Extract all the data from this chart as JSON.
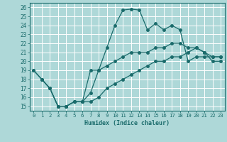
{
  "xlabel": "Humidex (Indice chaleur)",
  "bg_color": "#aed8d8",
  "grid_color": "#ffffff",
  "line_color": "#1a6b6b",
  "xlim": [
    -0.5,
    23.5
  ],
  "ylim": [
    14.5,
    26.5
  ],
  "xticks": [
    0,
    1,
    2,
    3,
    4,
    5,
    6,
    7,
    8,
    9,
    10,
    11,
    12,
    13,
    14,
    15,
    16,
    17,
    18,
    19,
    20,
    21,
    22,
    23
  ],
  "yticks": [
    15,
    16,
    17,
    18,
    19,
    20,
    21,
    22,
    23,
    24,
    25,
    26
  ],
  "line1_x": [
    0,
    1,
    2,
    3,
    4,
    5,
    6,
    7,
    8,
    9,
    10,
    11,
    12,
    13,
    14,
    15,
    16,
    17,
    18,
    19,
    20,
    21,
    22,
    23
  ],
  "line1_y": [
    19,
    18,
    17,
    15,
    15,
    15.5,
    15.5,
    16.5,
    19,
    21.5,
    24,
    25.7,
    25.8,
    25.7,
    23.5,
    24.2,
    23.5,
    24,
    23.5,
    20,
    20.5,
    20.5,
    20.5,
    20.5
  ],
  "line2_x": [
    0,
    1,
    2,
    3,
    4,
    5,
    6,
    7,
    8,
    9,
    10,
    11,
    12,
    13,
    14,
    15,
    16,
    17,
    18,
    19,
    20,
    21,
    22,
    23
  ],
  "line2_y": [
    19,
    18,
    17,
    15,
    15,
    15.5,
    15.5,
    19,
    19,
    19.5,
    20,
    20.5,
    21,
    21,
    21,
    21.5,
    21.5,
    22,
    22,
    21.5,
    21.5,
    21,
    20.5,
    20.5
  ],
  "line3_x": [
    1,
    2,
    3,
    4,
    5,
    6,
    7,
    8,
    9,
    10,
    11,
    12,
    13,
    14,
    15,
    16,
    17,
    18,
    19,
    20,
    21,
    22,
    23
  ],
  "line3_y": [
    18,
    17,
    15,
    15,
    15.5,
    15.5,
    15.5,
    16,
    17,
    17.5,
    18,
    18.5,
    19,
    19.5,
    20,
    20,
    20.5,
    20.5,
    21,
    21.5,
    21,
    20,
    20
  ]
}
